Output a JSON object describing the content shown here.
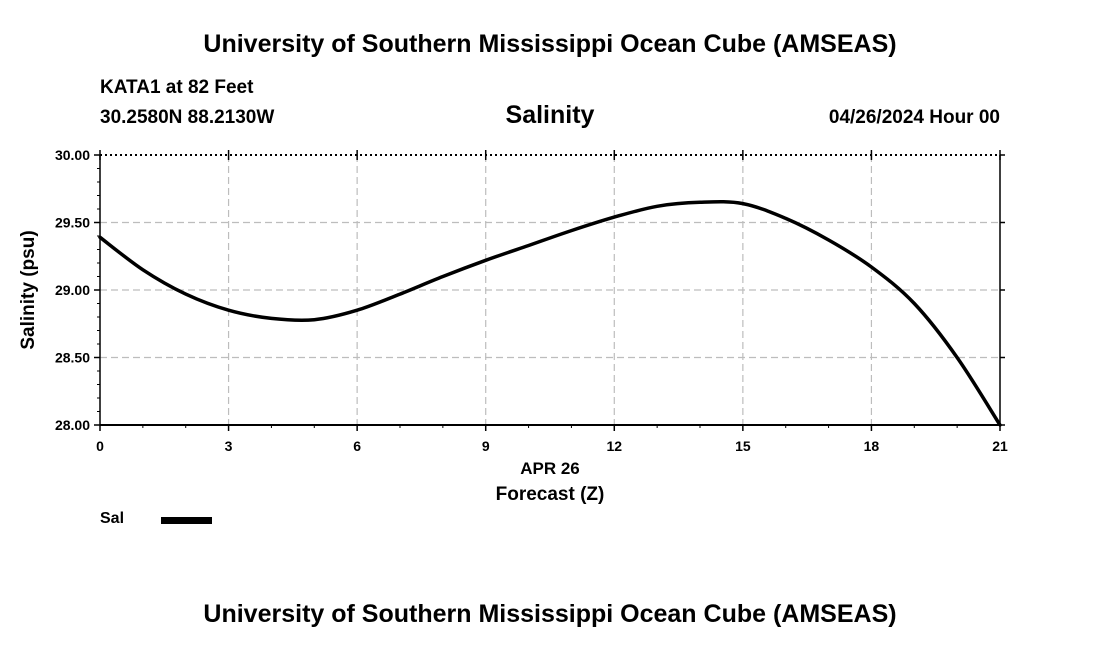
{
  "header": {
    "title": "University of Southern Mississippi Ocean Cube (AMSEAS)",
    "station": "KATA1 at 82 Feet",
    "coordinates": "30.2580N  88.2130W",
    "datetime": "04/26/2024 Hour 00"
  },
  "footer": {
    "title": "University of Southern Mississippi Ocean Cube (AMSEAS)"
  },
  "legend": {
    "label": "Sal",
    "color": "#000000"
  },
  "chart_data": {
    "type": "line",
    "title": "Salinity",
    "xlabel": "Forecast (Z)",
    "xdate_label": "APR 26",
    "ylabel": "Salinity (psu)",
    "xlim": [
      0,
      21
    ],
    "ylim": [
      28.0,
      30.0
    ],
    "xticks": [
      0,
      3,
      6,
      9,
      12,
      15,
      18,
      21
    ],
    "xtick_labels": [
      "0",
      "3",
      "6",
      "9",
      "12",
      "15",
      "18",
      "21"
    ],
    "yticks": [
      28.0,
      28.5,
      29.0,
      29.5,
      30.0
    ],
    "ytick_labels": [
      "28.00",
      "28.50",
      "29.00",
      "29.50",
      "30.00"
    ],
    "grid": true,
    "series": [
      {
        "name": "Sal",
        "color": "#000000",
        "x": [
          0,
          1,
          2,
          3,
          4,
          5,
          6,
          7,
          8,
          9,
          10,
          11,
          12,
          13,
          14,
          15,
          16,
          17,
          18,
          19,
          20,
          21
        ],
        "values": [
          29.39,
          29.15,
          28.97,
          28.85,
          28.79,
          28.78,
          28.85,
          28.97,
          29.1,
          29.22,
          29.33,
          29.44,
          29.54,
          29.62,
          29.65,
          29.64,
          29.53,
          29.37,
          29.17,
          28.9,
          28.5,
          28.0
        ]
      }
    ]
  }
}
